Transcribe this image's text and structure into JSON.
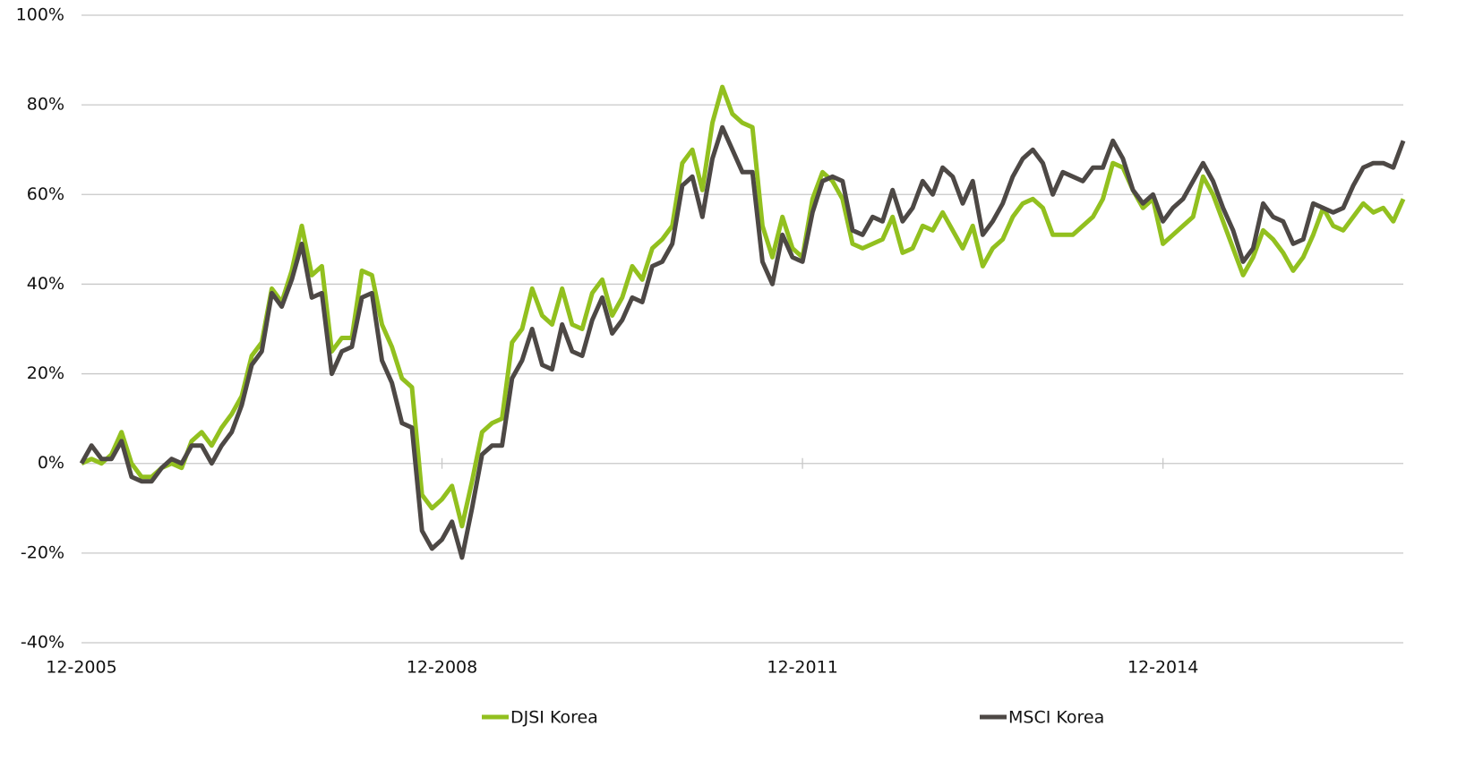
{
  "chart_data": {
    "type": "line",
    "categories": [
      "12-2005",
      null,
      null,
      null,
      null,
      null,
      null,
      null,
      null,
      null,
      null,
      null,
      null,
      null,
      null,
      null,
      null,
      null,
      null,
      null,
      null,
      null,
      null,
      null,
      null,
      null,
      null,
      null,
      null,
      null,
      null,
      null,
      null,
      null,
      null,
      null,
      "12-2008",
      null,
      null,
      null,
      null,
      null,
      null,
      null,
      null,
      null,
      null,
      null,
      null,
      null,
      null,
      null,
      null,
      null,
      null,
      null,
      null,
      null,
      null,
      null,
      null,
      null,
      null,
      null,
      null,
      null,
      null,
      null,
      null,
      null,
      null,
      null,
      "12-2011",
      null,
      null,
      null,
      null,
      null,
      null,
      null,
      null,
      null,
      null,
      null,
      null,
      null,
      null,
      null,
      null,
      null,
      null,
      null,
      null,
      null,
      null,
      null,
      null,
      null,
      null,
      null,
      null,
      null,
      null,
      null,
      null,
      null,
      null,
      null,
      "12-2014",
      null,
      null,
      null,
      null,
      null,
      null,
      null,
      null,
      null,
      null,
      null,
      null,
      null,
      null,
      null,
      null,
      null,
      null,
      null,
      null,
      null,
      null,
      null,
      null
    ],
    "series": [
      {
        "name": "DJSI Korea",
        "color": "#92c01f",
        "values": [
          0,
          1,
          0,
          2,
          7,
          0,
          -3,
          -3,
          -1,
          0,
          -1,
          5,
          7,
          4,
          8,
          11,
          15,
          24,
          27,
          39,
          36,
          43,
          53,
          42,
          44,
          25,
          28,
          28,
          43,
          42,
          31,
          26,
          19,
          17,
          -7,
          -10,
          -8,
          -5,
          -14,
          -4,
          7,
          9,
          10,
          27,
          30,
          39,
          33,
          31,
          39,
          31,
          30,
          38,
          41,
          33,
          37,
          44,
          41,
          48,
          50,
          53,
          67,
          70,
          61,
          76,
          84,
          78,
          76,
          75,
          53,
          46,
          55,
          48,
          46,
          59,
          65,
          63,
          59,
          49,
          48,
          49,
          50,
          55,
          47,
          48,
          53,
          52,
          56,
          52,
          48,
          53,
          44,
          48,
          50,
          55,
          58,
          59,
          57,
          51,
          51,
          51,
          53,
          55,
          59,
          67,
          66,
          61,
          57,
          59,
          49,
          51,
          53,
          55,
          64,
          60,
          54,
          48,
          42,
          46,
          52,
          50,
          47,
          43,
          46,
          51,
          57,
          53,
          52,
          55,
          58,
          56,
          57,
          54,
          59
        ]
      },
      {
        "name": "MSCI Korea",
        "color": "#4d4845",
        "values": [
          0,
          4,
          1,
          1,
          5,
          -3,
          -4,
          -4,
          -1,
          1,
          0,
          4,
          4,
          0,
          4,
          7,
          13,
          22,
          25,
          38,
          35,
          41,
          49,
          37,
          38,
          20,
          25,
          26,
          37,
          38,
          23,
          18,
          9,
          8,
          -15,
          -19,
          -17,
          -13,
          -21,
          -10,
          2,
          4,
          4,
          19,
          23,
          30,
          22,
          21,
          31,
          25,
          24,
          32,
          37,
          29,
          32,
          37,
          36,
          44,
          45,
          49,
          62,
          64,
          55,
          68,
          75,
          70,
          65,
          65,
          45,
          40,
          51,
          46,
          45,
          56,
          63,
          64,
          63,
          52,
          51,
          55,
          54,
          61,
          54,
          57,
          63,
          60,
          66,
          64,
          58,
          63,
          51,
          54,
          58,
          64,
          68,
          70,
          67,
          60,
          65,
          64,
          63,
          66,
          66,
          72,
          68,
          61,
          58,
          60,
          54,
          57,
          59,
          63,
          67,
          63,
          57,
          52,
          45,
          48,
          58,
          55,
          54,
          49,
          50,
          58,
          57,
          56,
          57,
          62,
          66,
          67,
          67,
          66,
          72
        ]
      }
    ],
    "ylim": [
      -40,
      100
    ],
    "yticks": [
      {
        "value": -40,
        "label": "-40%"
      },
      {
        "value": -20,
        "label": "-20%"
      },
      {
        "value": 0,
        "label": "0%"
      },
      {
        "value": 20,
        "label": "20%"
      },
      {
        "value": 40,
        "label": "40%"
      },
      {
        "value": 60,
        "label": "60%"
      },
      {
        "value": 80,
        "label": "80%"
      },
      {
        "value": 100,
        "label": "100%"
      }
    ],
    "grid": true,
    "legend": "bottom"
  }
}
